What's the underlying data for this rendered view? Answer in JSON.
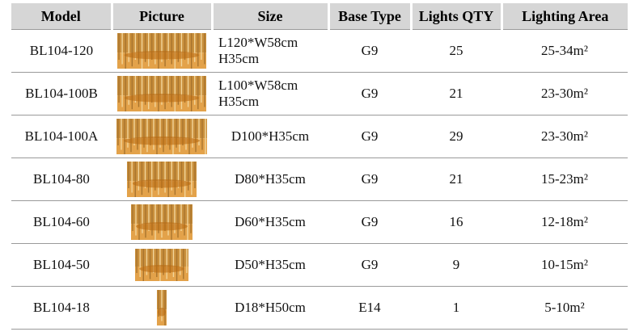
{
  "table": {
    "header": [
      "Model",
      "Picture",
      "Size",
      "Base Type",
      "Lights QTY",
      "Lighting Area"
    ],
    "rows": [
      [
        "BL104-120",
        "L120*W58cm\nH35cm",
        "G9",
        25,
        "25-34m²"
      ],
      [
        "BL104-100B",
        "L100*W58cm\nH35cm",
        "G9",
        21,
        "23-30m²"
      ],
      [
        "BL104-100A",
        "D100*H35cm",
        "G9",
        29,
        "23-30m²"
      ],
      [
        "BL104-80",
        "D80*H35cm",
        "G9",
        21,
        "15-23m²"
      ],
      [
        "BL104-60",
        "D60*H35cm",
        "G9",
        16,
        "12-18m²"
      ],
      [
        "BL104-50",
        "D50*H35cm",
        "G9",
        9,
        "10-15m²"
      ],
      [
        "BL104-18",
        "D18*H50cm",
        "E14",
        1,
        "5-10m²"
      ]
    ]
  }
}
